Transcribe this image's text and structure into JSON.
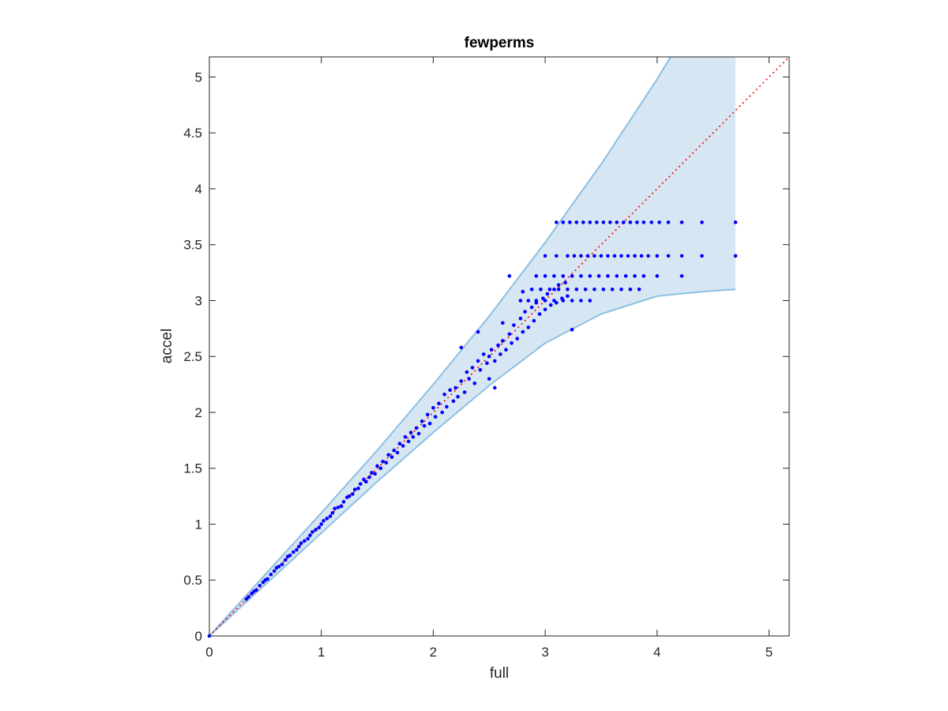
{
  "chart_data": {
    "type": "scatter",
    "title": "fewperms",
    "xlabel": "full",
    "ylabel": "accel",
    "xlim": [
      0,
      5.18
    ],
    "ylim": [
      0,
      5.18
    ],
    "xticks": [
      0,
      1,
      2,
      3,
      4,
      5
    ],
    "yticks": [
      0,
      0.5,
      1,
      1.5,
      2,
      2.5,
      3,
      3.5,
      4,
      4.5,
      5
    ],
    "xtick_labels": [
      "0",
      "1",
      "2",
      "3",
      "4",
      "5"
    ],
    "ytick_labels": [
      "0",
      "0.5",
      "1",
      "1.5",
      "2",
      "2.5",
      "3",
      "3.5",
      "4",
      "4.5",
      "5"
    ],
    "grid": false,
    "colors": {
      "points": "#0000ff",
      "band_fill": "#d6e6f2",
      "band_edge": "#8cbfe2",
      "reference_line": "#ff0000",
      "axes": "#262626"
    },
    "reference_line": {
      "style": "dotted",
      "x": [
        0,
        5.18
      ],
      "y": [
        0,
        5.18
      ]
    },
    "confidence_band": {
      "upper": [
        [
          0,
          0
        ],
        [
          0.5,
          0.55
        ],
        [
          1,
          1.1
        ],
        [
          1.5,
          1.66
        ],
        [
          2,
          2.25
        ],
        [
          2.5,
          2.86
        ],
        [
          3,
          3.52
        ],
        [
          3.5,
          4.22
        ],
        [
          4,
          4.98
        ],
        [
          4.12,
          5.18
        ],
        [
          4.7,
          5.18
        ]
      ],
      "lower": [
        [
          0,
          0
        ],
        [
          0.5,
          0.46
        ],
        [
          1,
          0.92
        ],
        [
          1.5,
          1.38
        ],
        [
          2,
          1.82
        ],
        [
          2.5,
          2.24
        ],
        [
          3,
          2.62
        ],
        [
          3.5,
          2.88
        ],
        [
          4,
          3.04
        ],
        [
          4.4,
          3.08
        ],
        [
          4.7,
          3.1
        ]
      ]
    },
    "series": [
      {
        "points": [
          [
            0,
            0
          ],
          [
            0.33,
            0.33
          ],
          [
            0.35,
            0.35
          ],
          [
            0.38,
            0.38
          ],
          [
            0.4,
            0.4
          ],
          [
            0.42,
            0.41
          ],
          [
            0.45,
            0.45
          ],
          [
            0.48,
            0.48
          ],
          [
            0.5,
            0.5
          ],
          [
            0.52,
            0.51
          ],
          [
            0.55,
            0.55
          ],
          [
            0.58,
            0.58
          ],
          [
            0.6,
            0.61
          ],
          [
            0.62,
            0.62
          ],
          [
            0.65,
            0.64
          ],
          [
            0.68,
            0.68
          ],
          [
            0.7,
            0.71
          ],
          [
            0.72,
            0.72
          ],
          [
            0.75,
            0.75
          ],
          [
            0.78,
            0.77
          ],
          [
            0.8,
            0.8
          ],
          [
            0.82,
            0.83
          ],
          [
            0.85,
            0.85
          ],
          [
            0.88,
            0.87
          ],
          [
            0.9,
            0.9
          ],
          [
            0.92,
            0.93
          ],
          [
            0.95,
            0.95
          ],
          [
            0.98,
            0.97
          ],
          [
            1.0,
            1.0
          ],
          [
            1.02,
            1.03
          ],
          [
            1.05,
            1.05
          ],
          [
            1.08,
            1.07
          ],
          [
            1.1,
            1.1
          ],
          [
            1.12,
            1.14
          ],
          [
            1.15,
            1.15
          ],
          [
            1.18,
            1.16
          ],
          [
            1.2,
            1.2
          ],
          [
            1.23,
            1.24
          ],
          [
            1.25,
            1.25
          ],
          [
            1.28,
            1.27
          ],
          [
            1.3,
            1.31
          ],
          [
            1.33,
            1.32
          ],
          [
            1.35,
            1.36
          ],
          [
            1.38,
            1.4
          ],
          [
            1.4,
            1.38
          ],
          [
            1.43,
            1.42
          ],
          [
            1.45,
            1.46
          ],
          [
            1.48,
            1.45
          ],
          [
            1.5,
            1.52
          ],
          [
            1.53,
            1.5
          ],
          [
            1.55,
            1.56
          ],
          [
            1.58,
            1.55
          ],
          [
            1.6,
            1.62
          ],
          [
            1.63,
            1.6
          ],
          [
            1.65,
            1.66
          ],
          [
            1.68,
            1.64
          ],
          [
            1.7,
            1.72
          ],
          [
            1.73,
            1.7
          ],
          [
            1.75,
            1.78
          ],
          [
            1.78,
            1.74
          ],
          [
            1.8,
            1.82
          ],
          [
            1.82,
            1.78
          ],
          [
            1.85,
            1.86
          ],
          [
            1.87,
            1.81
          ],
          [
            1.9,
            1.92
          ],
          [
            1.92,
            1.88
          ],
          [
            1.95,
            1.98
          ],
          [
            1.97,
            1.9
          ],
          [
            2.0,
            2.04
          ],
          [
            2.02,
            1.96
          ],
          [
            2.05,
            2.08
          ],
          [
            2.08,
            2.0
          ],
          [
            2.1,
            2.16
          ],
          [
            2.12,
            2.05
          ],
          [
            2.15,
            2.2
          ],
          [
            2.18,
            2.1
          ],
          [
            2.2,
            2.22
          ],
          [
            2.22,
            2.14
          ],
          [
            2.25,
            2.28
          ],
          [
            2.28,
            2.18
          ],
          [
            2.3,
            2.36
          ],
          [
            2.32,
            2.3
          ],
          [
            2.35,
            2.4
          ],
          [
            2.37,
            2.26
          ],
          [
            2.4,
            2.46
          ],
          [
            2.42,
            2.38
          ],
          [
            2.45,
            2.52
          ],
          [
            2.48,
            2.44
          ],
          [
            2.5,
            2.5
          ],
          [
            2.52,
            2.56
          ],
          [
            2.55,
            2.46
          ],
          [
            2.58,
            2.6
          ],
          [
            2.6,
            2.52
          ],
          [
            2.62,
            2.64
          ],
          [
            2.65,
            2.56
          ],
          [
            2.68,
            2.7
          ],
          [
            2.7,
            2.62
          ],
          [
            2.72,
            2.78
          ],
          [
            2.75,
            2.66
          ],
          [
            2.78,
            2.84
          ],
          [
            2.8,
            2.72
          ],
          [
            2.82,
            2.9
          ],
          [
            2.85,
            2.76
          ],
          [
            2.88,
            2.94
          ],
          [
            2.9,
            2.82
          ],
          [
            2.92,
            2.98
          ],
          [
            2.95,
            2.88
          ],
          [
            2.98,
            3.02
          ],
          [
            3.0,
            2.92
          ],
          [
            3.02,
            3.06
          ],
          [
            3.05,
            2.96
          ],
          [
            3.08,
            3.1
          ],
          [
            3.1,
            2.98
          ],
          [
            3.12,
            3.14
          ],
          [
            3.15,
            3.02
          ],
          [
            3.18,
            3.16
          ],
          [
            3.2,
            3.04
          ],
          [
            3.24,
            2.74
          ],
          [
            2.55,
            2.22
          ],
          [
            2.62,
            2.8
          ],
          [
            2.68,
            3.22
          ],
          [
            2.25,
            2.58
          ],
          [
            2.4,
            2.72
          ],
          [
            2.5,
            2.3
          ],
          [
            2.78,
            3.0
          ],
          [
            2.85,
            3.0
          ],
          [
            2.92,
            3.0
          ],
          [
            3.0,
            3.0
          ],
          [
            3.08,
            3.0
          ],
          [
            3.16,
            3.0
          ],
          [
            3.24,
            3.0
          ],
          [
            3.32,
            3.0
          ],
          [
            3.4,
            3.0
          ],
          [
            2.8,
            3.08
          ],
          [
            2.88,
            3.1
          ],
          [
            2.96,
            3.1
          ],
          [
            3.04,
            3.1
          ],
          [
            3.12,
            3.1
          ],
          [
            3.2,
            3.1
          ],
          [
            3.28,
            3.1
          ],
          [
            3.36,
            3.1
          ],
          [
            3.44,
            3.1
          ],
          [
            3.52,
            3.1
          ],
          [
            3.6,
            3.1
          ],
          [
            3.68,
            3.1
          ],
          [
            3.76,
            3.1
          ],
          [
            3.84,
            3.1
          ],
          [
            2.92,
            3.22
          ],
          [
            3.0,
            3.22
          ],
          [
            3.08,
            3.22
          ],
          [
            3.16,
            3.22
          ],
          [
            3.24,
            3.22
          ],
          [
            3.32,
            3.22
          ],
          [
            3.4,
            3.22
          ],
          [
            3.48,
            3.22
          ],
          [
            3.56,
            3.22
          ],
          [
            3.64,
            3.22
          ],
          [
            3.72,
            3.22
          ],
          [
            3.8,
            3.22
          ],
          [
            3.88,
            3.22
          ],
          [
            4.0,
            3.22
          ],
          [
            4.22,
            3.22
          ],
          [
            3.0,
            3.4
          ],
          [
            3.1,
            3.4
          ],
          [
            3.2,
            3.4
          ],
          [
            3.26,
            3.4
          ],
          [
            3.32,
            3.4
          ],
          [
            3.38,
            3.4
          ],
          [
            3.44,
            3.4
          ],
          [
            3.5,
            3.4
          ],
          [
            3.56,
            3.4
          ],
          [
            3.62,
            3.4
          ],
          [
            3.68,
            3.4
          ],
          [
            3.74,
            3.4
          ],
          [
            3.8,
            3.4
          ],
          [
            3.86,
            3.4
          ],
          [
            3.92,
            3.4
          ],
          [
            4.0,
            3.4
          ],
          [
            4.1,
            3.4
          ],
          [
            4.22,
            3.4
          ],
          [
            4.4,
            3.4
          ],
          [
            4.7,
            3.4
          ],
          [
            3.1,
            3.7
          ],
          [
            3.16,
            3.7
          ],
          [
            3.22,
            3.7
          ],
          [
            3.28,
            3.7
          ],
          [
            3.34,
            3.7
          ],
          [
            3.4,
            3.7
          ],
          [
            3.46,
            3.7
          ],
          [
            3.52,
            3.7
          ],
          [
            3.58,
            3.7
          ],
          [
            3.64,
            3.7
          ],
          [
            3.7,
            3.7
          ],
          [
            3.76,
            3.7
          ],
          [
            3.82,
            3.7
          ],
          [
            3.88,
            3.7
          ],
          [
            3.95,
            3.7
          ],
          [
            4.02,
            3.7
          ],
          [
            4.1,
            3.7
          ],
          [
            4.22,
            3.7
          ],
          [
            4.4,
            3.7
          ],
          [
            4.7,
            3.7
          ]
        ]
      }
    ]
  }
}
